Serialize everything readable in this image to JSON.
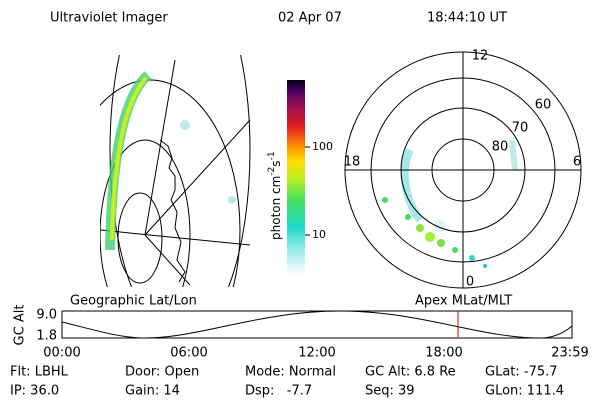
{
  "header": {
    "instrument": "Ultraviolet Imager",
    "date": "02 Apr 07",
    "time": "18:44:10 UT"
  },
  "colorbar": {
    "ticks": [
      "100",
      "10"
    ],
    "label": {
      "base": "photon cm",
      "exp1": "-2",
      "unit": "s",
      "exp2": "-1"
    }
  },
  "polar": {
    "labels": {
      "top": "12",
      "left": "18",
      "right": "6",
      "bottom": "0"
    },
    "rings": [
      "60",
      "70",
      "80"
    ]
  },
  "panel_titles": {
    "left": "Geographic Lat/Lon",
    "right": "Apex MLat/MLT"
  },
  "timeline": {
    "ylabel": "GC Alt",
    "yticks": [
      "9.0",
      "1.8"
    ],
    "xticks": [
      "00:00",
      "06:00",
      "12:00",
      "18:00",
      "23:59"
    ]
  },
  "info": {
    "rows": [
      [
        "Flt: LBHL",
        "Door: Open",
        "Mode: Normal",
        "GC Alt: 6.8 Re",
        "GLat: -75.7"
      ],
      [
        "IP: 36.0",
        "Gain: 14",
        "Dsp:   -7.7",
        "Seq: 39",
        "GLon: 111.4"
      ]
    ]
  }
}
